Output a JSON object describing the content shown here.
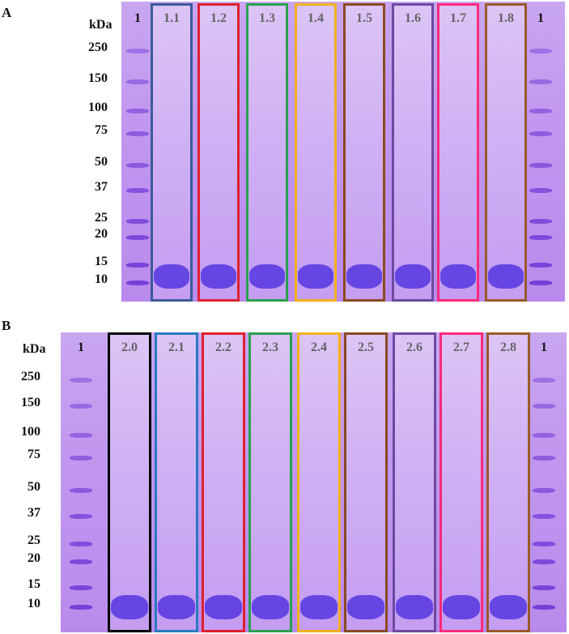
{
  "figure": {
    "panels": [
      {
        "letter": "A",
        "mw_title": "kDa",
        "mw_markers": [
          "250",
          "150",
          "100",
          "75",
          "50",
          "37",
          "25",
          "20",
          "15",
          "10"
        ],
        "lanes": [
          {
            "label": "1",
            "box_color": ""
          },
          {
            "label": "1.1",
            "box_color": "#3b5a9a"
          },
          {
            "label": "1.2",
            "box_color": "#e02030"
          },
          {
            "label": "1.3",
            "box_color": "#2aa050"
          },
          {
            "label": "1.4",
            "box_color": "#f2b01e"
          },
          {
            "label": "1.5",
            "box_color": "#8a4a22"
          },
          {
            "label": "1.6",
            "box_color": "#6b4aa0"
          },
          {
            "label": "1.7",
            "box_color": "#ff2a7a"
          },
          {
            "label": "1.8",
            "box_color": "#9a5a2a"
          },
          {
            "label": "1",
            "box_color": ""
          }
        ]
      },
      {
        "letter": "B",
        "mw_title": "kDa",
        "mw_markers": [
          "250",
          "150",
          "100",
          "75",
          "50",
          "37",
          "25",
          "20",
          "15",
          "10"
        ],
        "lanes": [
          {
            "label": "1",
            "box_color": ""
          },
          {
            "label": "2.0",
            "box_color": "#000000"
          },
          {
            "label": "2.1",
            "box_color": "#2a7ac0"
          },
          {
            "label": "2.2",
            "box_color": "#e02030"
          },
          {
            "label": "2.3",
            "box_color": "#2aa050"
          },
          {
            "label": "2.4",
            "box_color": "#f2b01e"
          },
          {
            "label": "2.5",
            "box_color": "#8a4a22"
          },
          {
            "label": "2.6",
            "box_color": "#6b4aa0"
          },
          {
            "label": "2.7",
            "box_color": "#ff2a7a"
          },
          {
            "label": "2.8",
            "box_color": "#9a5a2a"
          },
          {
            "label": "1",
            "box_color": ""
          }
        ]
      }
    ]
  }
}
